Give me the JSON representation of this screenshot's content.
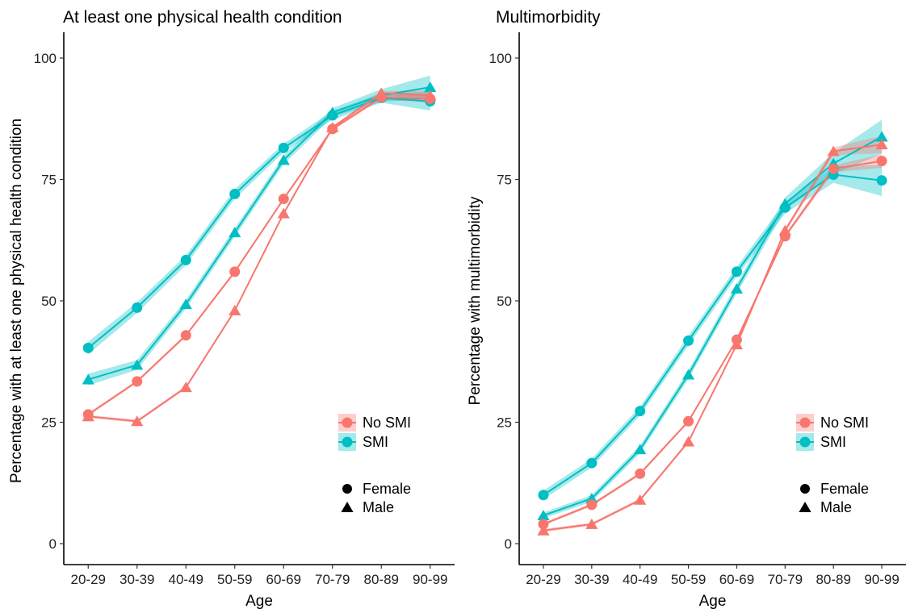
{
  "chart_data": [
    {
      "type": "line",
      "title": "At least one physical health condition",
      "xlabel": "Age",
      "ylabel": "Percentage with at least one physical health condition",
      "categories": [
        "20-29",
        "30-39",
        "40-49",
        "50-59",
        "60-69",
        "70-79",
        "80-89",
        "90-99"
      ],
      "ylim": [
        0,
        100
      ],
      "yticks": [
        0,
        25,
        50,
        75,
        100
      ],
      "grid": false,
      "legend_position": "bottom-right",
      "series": [
        {
          "group": "SMI",
          "sex": "Female",
          "values": [
            40.3,
            48.6,
            58.4,
            72.0,
            81.5,
            88.2,
            91.8,
            91.1
          ],
          "ci": [
            1.3,
            1.1,
            1.0,
            1.0,
            0.9,
            0.9,
            1.0,
            1.9
          ]
        },
        {
          "group": "SMI",
          "sex": "Male",
          "values": [
            33.8,
            36.8,
            49.3,
            64.1,
            79.0,
            88.8,
            92.3,
            94.0
          ],
          "ci": [
            1.2,
            1.0,
            0.9,
            0.9,
            0.9,
            0.9,
            1.3,
            2.4
          ]
        },
        {
          "group": "No SMI",
          "sex": "Female",
          "values": [
            26.6,
            33.4,
            42.9,
            56.0,
            71.0,
            85.4,
            91.9,
            91.6
          ],
          "ci": [
            0.3,
            0.3,
            0.3,
            0.3,
            0.3,
            0.3,
            0.4,
            0.8
          ]
        },
        {
          "group": "No SMI",
          "sex": "Male",
          "values": [
            26.2,
            25.2,
            32.2,
            48.0,
            68.0,
            85.7,
            92.8,
            92.3
          ],
          "ci": [
            0.3,
            0.3,
            0.3,
            0.3,
            0.3,
            0.3,
            0.4,
            1.0
          ]
        }
      ]
    },
    {
      "type": "line",
      "title": "Multimorbidity",
      "xlabel": "Age",
      "ylabel": "Percentage with multimorbidity",
      "categories": [
        "20-29",
        "30-39",
        "40-49",
        "50-59",
        "60-69",
        "70-79",
        "80-89",
        "90-99"
      ],
      "ylim": [
        0,
        100
      ],
      "yticks": [
        0,
        25,
        50,
        75,
        100
      ],
      "grid": false,
      "legend_position": "bottom-right",
      "series": [
        {
          "group": "SMI",
          "sex": "Female",
          "values": [
            10.0,
            16.6,
            27.3,
            41.8,
            56.0,
            69.2,
            76.0,
            74.8
          ],
          "ci": [
            0.9,
            0.9,
            0.9,
            1.0,
            1.0,
            1.2,
            1.7,
            3.2
          ]
        },
        {
          "group": "SMI",
          "sex": "Male",
          "values": [
            5.8,
            9.3,
            19.4,
            34.8,
            52.5,
            70.0,
            78.3,
            83.8
          ],
          "ci": [
            0.6,
            0.7,
            0.8,
            0.9,
            1.0,
            1.3,
            2.2,
            3.5
          ]
        },
        {
          "group": "No SMI",
          "sex": "Female",
          "values": [
            4.0,
            8.0,
            14.4,
            25.2,
            42.0,
            63.3,
            77.2,
            78.8
          ],
          "ci": [
            0.3,
            0.3,
            0.3,
            0.3,
            0.3,
            0.4,
            0.7,
            1.4
          ]
        },
        {
          "group": "No SMI",
          "sex": "Male",
          "values": [
            2.7,
            4.0,
            9.0,
            21.0,
            41.0,
            64.5,
            80.8,
            82.2
          ],
          "ci": [
            0.3,
            0.3,
            0.3,
            0.3,
            0.3,
            0.4,
            0.8,
            1.8
          ]
        }
      ]
    }
  ],
  "legend": {
    "groups": [
      {
        "label": "No SMI",
        "color": "#F8766D"
      },
      {
        "label": "SMI",
        "color": "#00BFC4"
      }
    ],
    "shapes": [
      {
        "label": "Female",
        "shape": "circle"
      },
      {
        "label": "Male",
        "shape": "triangle"
      }
    ]
  }
}
